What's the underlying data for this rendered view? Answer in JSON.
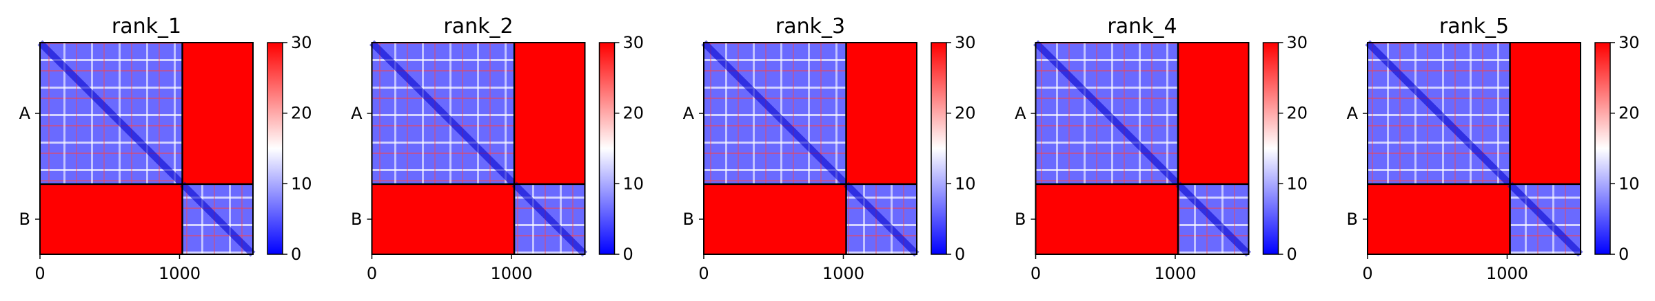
{
  "chart_data": {
    "type": "heatmap",
    "description_note": "",
    "colormap": {
      "colors": [
        "#0000ff",
        "#ffffff",
        "#ff0000"
      ],
      "vmin": 0,
      "vmax": 30,
      "ticks": [
        0,
        10,
        20,
        30
      ]
    },
    "x_ticks": [
      0,
      1000
    ],
    "xlim": [
      0,
      1526
    ],
    "chains": [
      {
        "label": "A",
        "start": 0,
        "end": 1020
      },
      {
        "label": "B",
        "start": 1020,
        "end": 1526
      }
    ],
    "panels": [
      {
        "title": "rank_1"
      },
      {
        "title": "rank_2"
      },
      {
        "title": "rank_3"
      },
      {
        "title": "rank_4"
      },
      {
        "title": "rank_5"
      }
    ]
  }
}
